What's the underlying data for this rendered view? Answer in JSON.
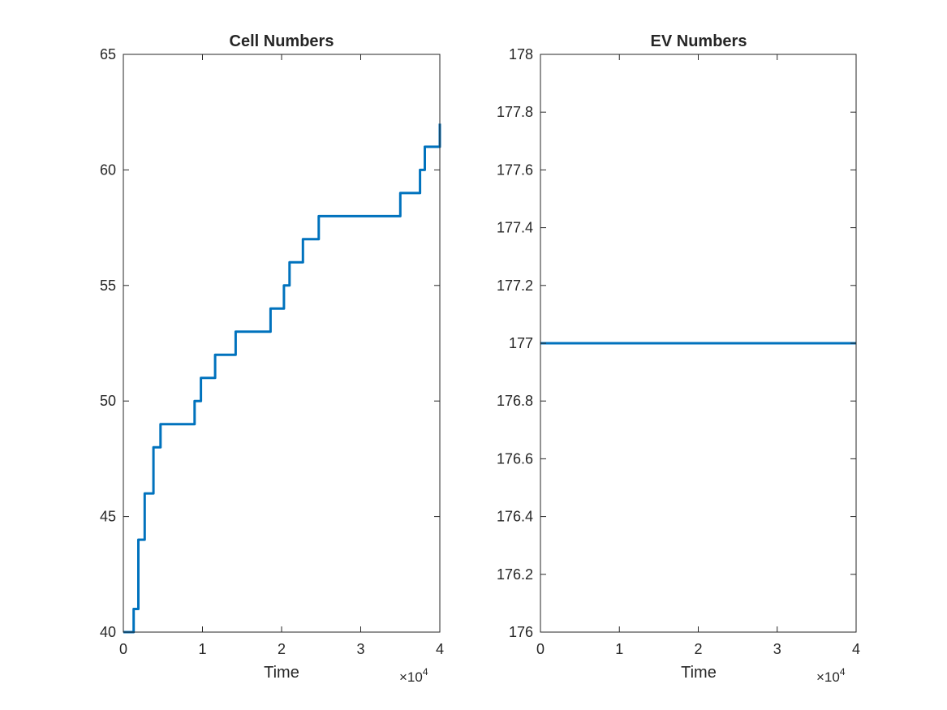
{
  "chart_data": [
    {
      "type": "line",
      "title": "Cell Numbers",
      "xlabel": "Time",
      "ylabel": "",
      "xlim": [
        0,
        40000
      ],
      "ylim": [
        40,
        65
      ],
      "x_exponent_label": "×10",
      "x_exponent_power": "4",
      "xticks": [
        0,
        1,
        2,
        3,
        4
      ],
      "yticks": [
        40,
        45,
        50,
        55,
        60,
        65
      ],
      "color": "#0072BD",
      "series": [
        {
          "step": true,
          "points": [
            [
              0,
              40
            ],
            [
              1300,
              41
            ],
            [
              1900,
              44
            ],
            [
              2700,
              46
            ],
            [
              3800,
              48
            ],
            [
              4700,
              49
            ],
            [
              9000,
              50
            ],
            [
              9800,
              51
            ],
            [
              11600,
              52
            ],
            [
              14200,
              53
            ],
            [
              18600,
              54
            ],
            [
              20300,
              55
            ],
            [
              21000,
              56
            ],
            [
              22700,
              57
            ],
            [
              24700,
              58
            ],
            [
              35000,
              59
            ],
            [
              37500,
              60
            ],
            [
              38100,
              61
            ],
            [
              40000,
              62
            ]
          ]
        }
      ]
    },
    {
      "type": "line",
      "title": "EV Numbers",
      "xlabel": "Time",
      "ylabel": "",
      "xlim": [
        0,
        40000
      ],
      "ylim": [
        176,
        178
      ],
      "x_exponent_label": "×10",
      "x_exponent_power": "4",
      "xticks": [
        0,
        1,
        2,
        3,
        4
      ],
      "yticks": [
        176,
        176.2,
        176.4,
        176.6,
        176.8,
        177,
        177.2,
        177.4,
        177.6,
        177.8,
        178
      ],
      "color": "#0072BD",
      "series": [
        {
          "step": false,
          "points": [
            [
              0,
              177
            ],
            [
              40000,
              177
            ]
          ]
        }
      ]
    }
  ]
}
